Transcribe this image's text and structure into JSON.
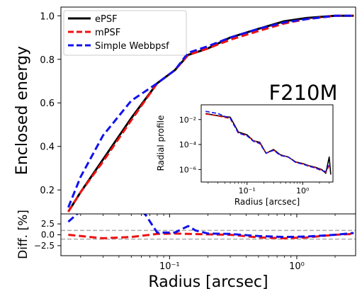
{
  "colors": {
    "epsf": "#000000",
    "mpsf": "#ee1111",
    "webbpsf": "#1111ee",
    "guide": "#aaaaaa"
  },
  "chart_data": [
    {
      "id": "main",
      "type": "line",
      "title": "",
      "annotation": "F210M",
      "xlabel": "",
      "ylabel": "Enclosed energy",
      "xscale": "log",
      "xlim": [
        0.014,
        2.9
      ],
      "ylim": [
        0.09,
        1.04
      ],
      "yticks": [
        0.2,
        0.4,
        0.6,
        0.8,
        1.0
      ],
      "ytick_labels": [
        "0.2",
        "0.4",
        "0.6",
        "0.8",
        "1.0"
      ],
      "xticks": [
        0.1,
        1
      ],
      "xtick_labels": [
        "",
        ""
      ],
      "legend": "top-left",
      "series": [
        {
          "name": "ePSF",
          "style": "solid",
          "color": "#000000",
          "x": [
            0.016,
            0.02,
            0.03,
            0.05,
            0.08,
            0.11,
            0.14,
            0.2,
            0.3,
            0.5,
            0.8,
            1.2,
            2.0,
            2.8
          ],
          "y": [
            0.1,
            0.19,
            0.34,
            0.53,
            0.69,
            0.75,
            0.82,
            0.85,
            0.9,
            0.94,
            0.975,
            0.99,
            1.0,
            1.0
          ]
        },
        {
          "name": "mPSF",
          "style": "dashed",
          "color": "#ee1111",
          "x": [
            0.016,
            0.02,
            0.03,
            0.05,
            0.08,
            0.11,
            0.14,
            0.2,
            0.3,
            0.5,
            0.8,
            1.2,
            2.0,
            2.8
          ],
          "y": [
            0.1,
            0.19,
            0.33,
            0.52,
            0.69,
            0.75,
            0.82,
            0.85,
            0.89,
            0.93,
            0.965,
            0.985,
            1.0,
            1.0
          ]
        },
        {
          "name": "Simple Webbpsf",
          "style": "dashed",
          "color": "#1111ee",
          "x": [
            0.016,
            0.02,
            0.03,
            0.05,
            0.08,
            0.11,
            0.14,
            0.2,
            0.3,
            0.5,
            0.8,
            1.2,
            2.0,
            2.8
          ],
          "y": [
            0.12,
            0.26,
            0.45,
            0.61,
            0.69,
            0.75,
            0.83,
            0.86,
            0.9,
            0.94,
            0.97,
            0.985,
            1.0,
            1.0
          ]
        }
      ]
    },
    {
      "id": "inset",
      "type": "line",
      "xlabel": "Radius [arcsec]",
      "ylabel": "Radial profile",
      "xscale": "log",
      "yscale": "log",
      "xlim": [
        0.015,
        3.5
      ],
      "ylim": [
        1e-07,
        0.15
      ],
      "yticks": [
        0.01,
        0.0001,
        1e-06
      ],
      "ytick_labels": [
        "10⁻²",
        "10⁻⁴",
        "10⁻⁶"
      ],
      "xticks": [
        0.1,
        1
      ],
      "xtick_labels": [
        "10⁻¹",
        "10⁰"
      ],
      "series": [
        {
          "style": "solid",
          "color": "#000000",
          "x": [
            0.018,
            0.03,
            0.05,
            0.07,
            0.1,
            0.13,
            0.17,
            0.22,
            0.3,
            0.4,
            0.55,
            0.75,
            1.0,
            1.3,
            1.7,
            2.2,
            2.6,
            3.0,
            3.2
          ],
          "y": [
            0.03,
            0.02,
            0.015,
            0.001,
            0.0006,
            0.0002,
            0.00015,
            2e-05,
            4e-05,
            1.5e-05,
            1e-05,
            4e-06,
            3e-06,
            2e-06,
            1.5e-06,
            1e-06,
            5e-07,
            1e-05,
            4e-07
          ]
        },
        {
          "style": "dashed",
          "color": "#ee1111",
          "x": [
            0.018,
            0.03,
            0.05,
            0.07,
            0.1,
            0.13,
            0.17,
            0.22,
            0.3,
            0.4,
            0.55,
            0.75,
            1.0,
            1.3,
            1.7,
            2.2,
            2.6,
            3.0
          ],
          "y": [
            0.028,
            0.019,
            0.012,
            0.0009,
            0.0005,
            0.0002,
            0.00013,
            2e-05,
            3.5e-05,
            1.4e-05,
            1e-05,
            3.8e-06,
            2.8e-06,
            1.9e-06,
            1.4e-06,
            9e-07,
            6e-07,
            2e-06
          ]
        },
        {
          "style": "dashed",
          "color": "#1111ee",
          "x": [
            0.018,
            0.03,
            0.05,
            0.07,
            0.1,
            0.13,
            0.17,
            0.22,
            0.3,
            0.4,
            0.55,
            0.75,
            1.0,
            1.3,
            1.7,
            2.2,
            2.6,
            3.0
          ],
          "y": [
            0.045,
            0.03,
            0.012,
            0.0008,
            0.0005,
            0.00018,
            0.00012,
            2e-05,
            3.5e-05,
            1.3e-05,
            1e-05,
            3.6e-06,
            2.7e-06,
            1.8e-06,
            1.3e-06,
            8e-07,
            7e-07,
            3e-06
          ]
        }
      ]
    },
    {
      "id": "diff",
      "type": "line",
      "xlabel": "Radius [arcsec]",
      "ylabel": "Diff. [%]",
      "xscale": "log",
      "xlim": [
        0.014,
        2.9
      ],
      "ylim": [
        -4.8,
        4.8
      ],
      "yticks": [
        2.5,
        0.0,
        -2.5
      ],
      "ytick_labels": [
        "2.5",
        "0.0",
        "−2.5"
      ],
      "xticks": [
        0.1,
        1
      ],
      "xtick_labels": [
        "10⁻¹",
        "10⁰"
      ],
      "guides": [
        1.0,
        -1.0
      ],
      "series": [
        {
          "style": "dashed",
          "color": "#ee1111",
          "x": [
            0.016,
            0.02,
            0.03,
            0.05,
            0.08,
            0.11,
            0.14,
            0.2,
            0.3,
            0.5,
            0.8,
            1.2,
            2.0,
            2.8
          ],
          "y": [
            0.0,
            -0.3,
            -0.8,
            -0.5,
            0.2,
            0.3,
            0.2,
            0.1,
            0.0,
            -0.6,
            -0.8,
            -0.6,
            0.0,
            0.2
          ]
        },
        {
          "style": "dashed",
          "color": "#1111ee",
          "x": [
            0.016,
            0.02,
            0.03,
            0.05,
            0.065,
            0.08,
            0.11,
            0.14,
            0.16,
            0.2,
            0.3,
            0.5,
            0.8,
            1.2,
            2.0,
            2.8
          ],
          "y": [
            3.0,
            5.5,
            8.0,
            8.0,
            4.5,
            0.5,
            0.5,
            2.0,
            1.0,
            0.3,
            0.2,
            -0.3,
            -0.5,
            -0.4,
            0.0,
            0.4
          ]
        }
      ]
    }
  ]
}
